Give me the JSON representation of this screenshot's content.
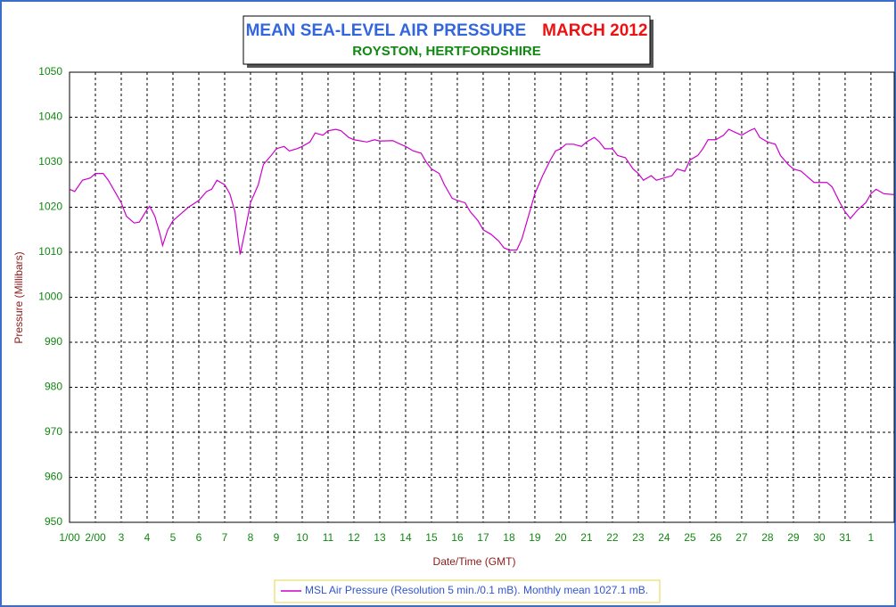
{
  "chart_data": {
    "type": "line",
    "title": "MEAN SEA-LEVEL AIR PRESSURE",
    "title_month": "MARCH 2012",
    "subtitle": "ROYSTON, HERTFORDSHIRE",
    "xlabel": "Date/Time (GMT)",
    "ylabel": "Pressure (Millibars)",
    "xlim": [
      1,
      32.9
    ],
    "ylim": [
      950,
      1050
    ],
    "yticks": [
      950,
      960,
      970,
      980,
      990,
      1000,
      1010,
      1020,
      1030,
      1040,
      1050
    ],
    "xticks": [
      {
        "value": 1,
        "label": "1/00"
      },
      {
        "value": 2,
        "label": "2/00"
      },
      3,
      4,
      5,
      6,
      7,
      8,
      9,
      10,
      11,
      12,
      13,
      14,
      15,
      16,
      17,
      18,
      19,
      20,
      21,
      22,
      23,
      24,
      25,
      26,
      27,
      28,
      29,
      30,
      31,
      {
        "value": 32,
        "label": "1"
      }
    ],
    "grid": true,
    "legend": "bottom",
    "x": [
      1.0,
      1.2,
      1.5,
      1.8,
      2.0,
      2.3,
      2.5,
      2.8,
      3.0,
      3.2,
      3.5,
      3.7,
      4.0,
      4.1,
      4.3,
      4.5,
      4.6,
      4.8,
      5.0,
      5.3,
      5.6,
      6.0,
      6.3,
      6.5,
      6.7,
      7.0,
      7.2,
      7.4,
      7.5,
      7.6,
      7.8,
      8.0,
      8.3,
      8.5,
      8.8,
      9.0,
      9.3,
      9.5,
      9.8,
      10.0,
      10.3,
      10.5,
      10.8,
      11.0,
      11.3,
      11.5,
      11.8,
      12.0,
      12.5,
      12.8,
      13.0,
      13.5,
      13.8,
      14.0,
      14.3,
      14.6,
      14.8,
      15.0,
      15.3,
      15.5,
      15.8,
      16.0,
      16.3,
      16.5,
      16.8,
      17.0,
      17.3,
      17.6,
      17.8,
      18.0,
      18.3,
      18.5,
      18.7,
      19.0,
      19.3,
      19.6,
      19.8,
      20.0,
      20.2,
      20.5,
      20.8,
      21.0,
      21.3,
      21.5,
      21.7,
      22.0,
      22.2,
      22.5,
      22.8,
      23.0,
      23.2,
      23.5,
      23.7,
      24.0,
      24.3,
      24.5,
      24.8,
      25.0,
      25.3,
      25.5,
      25.7,
      26.0,
      26.3,
      26.5,
      26.8,
      27.0,
      27.3,
      27.5,
      27.7,
      28.0,
      28.3,
      28.5,
      28.8,
      29.0,
      29.3,
      29.5,
      29.8,
      30.0,
      30.3,
      30.5,
      30.8,
      31.0,
      31.2,
      31.5,
      31.8,
      32.0,
      32.2,
      32.5,
      32.9
    ],
    "series": [
      {
        "name": "MSL Air Pressure (Resolution 5 min./0.1 mB). Monthly mean 1027.1 mB.",
        "color": "#cc00cc",
        "values": [
          1024,
          1023.5,
          1026,
          1026.5,
          1027.5,
          1027.5,
          1026,
          1023,
          1021,
          1018,
          1016.5,
          1016.7,
          1019.5,
          1020.2,
          1018,
          1014,
          1011.5,
          1015,
          1017,
          1018.5,
          1020,
          1021.5,
          1023.5,
          1024,
          1026,
          1025,
          1023,
          1019,
          1014,
          1009.5,
          1015,
          1021,
          1025,
          1029.5,
          1031.5,
          1033,
          1033.5,
          1032.5,
          1033,
          1033.5,
          1034.5,
          1036.5,
          1036,
          1037,
          1037.3,
          1037,
          1035.5,
          1035,
          1034.5,
          1035,
          1034.7,
          1034.8,
          1034,
          1033.5,
          1032.5,
          1032,
          1030,
          1028.5,
          1027.5,
          1025,
          1022,
          1021.5,
          1021,
          1019,
          1017,
          1015,
          1014,
          1012.5,
          1011,
          1010.5,
          1010.5,
          1013,
          1017,
          1023,
          1027,
          1030.5,
          1032.5,
          1033,
          1034,
          1034,
          1033.5,
          1034.5,
          1035.5,
          1034.5,
          1033,
          1033,
          1031.5,
          1031,
          1028.5,
          1027.5,
          1026,
          1027,
          1026,
          1026.5,
          1027,
          1028.5,
          1028,
          1030.5,
          1031.5,
          1033,
          1035,
          1035,
          1036,
          1037.3,
          1036.5,
          1036,
          1037,
          1037.5,
          1035.5,
          1034.5,
          1034,
          1031.5,
          1029.5,
          1028.5,
          1028,
          1027,
          1025.5,
          1025.5,
          1025.5,
          1024.5,
          1021,
          1019,
          1017.5,
          1019.5,
          1021,
          1023,
          1024,
          1023,
          1022.8
        ]
      }
    ]
  }
}
